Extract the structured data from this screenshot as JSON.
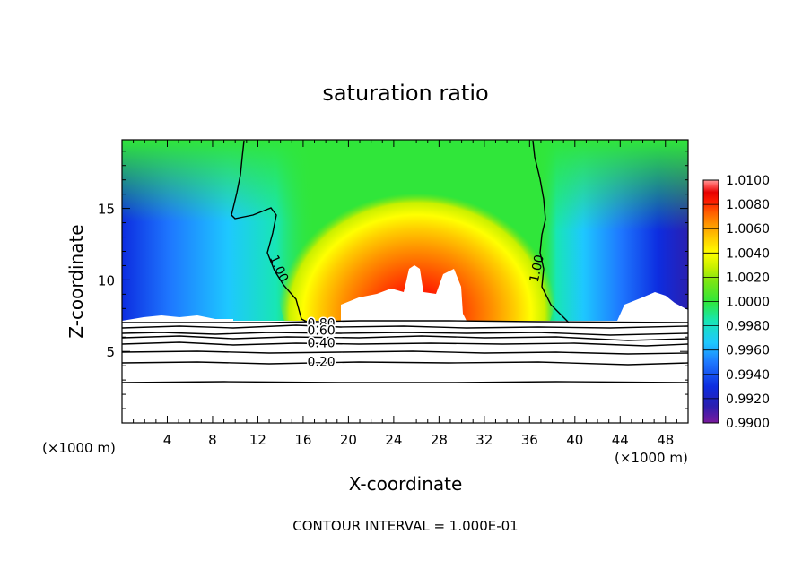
{
  "chart_data": {
    "type": "heatmap",
    "title": "saturation ratio",
    "xlabel": "X-coordinate",
    "ylabel": "Z-coordinate",
    "x_unit_left": "(×1000 m)",
    "x_unit_right": "(×1000 m)",
    "xlim": [
      0,
      50
    ],
    "ylim": [
      0,
      19.8
    ],
    "x_ticks": [
      "4",
      "8",
      "12",
      "16",
      "20",
      "24",
      "28",
      "32",
      "36",
      "40",
      "44",
      "48"
    ],
    "x_tick_values": [
      4,
      8,
      12,
      16,
      20,
      24,
      28,
      32,
      36,
      40,
      44,
      48
    ],
    "y_ticks": [
      "5",
      "10",
      "15"
    ],
    "y_tick_values": [
      5,
      10,
      15
    ],
    "footer": "CONTOUR INTERVAL = 1.000E-01",
    "colorbar": {
      "labels": [
        "1.0100",
        "1.0080",
        "1.0060",
        "1.0040",
        "1.0020",
        "1.0000",
        "0.9980",
        "0.9960",
        "0.9940",
        "0.9920",
        "0.9900"
      ],
      "min": 0.99,
      "max": 1.01,
      "colors": [
        "#7a1a9e",
        "#2a1fb0",
        "#0d2de0",
        "#1e78ff",
        "#1ec8ff",
        "#18e6b4",
        "#30e63a",
        "#78e614",
        "#c8f000",
        "#ffff00",
        "#ffcc00",
        "#ff9400",
        "#ff5a00",
        "#ff1e00",
        "#e60000",
        "#ff5a5a",
        "#ff9a9a"
      ]
    },
    "contour_labels": [
      {
        "text": "1.00",
        "x": 13.9,
        "z": 10.8
      },
      {
        "text": "1.00",
        "x": 36.6,
        "z": 10.8
      },
      {
        "text": "0.80",
        "x": 17.6,
        "z": 7.0
      },
      {
        "text": "0.60",
        "x": 17.6,
        "z": 6.5
      },
      {
        "text": "0.40",
        "x": 17.6,
        "z": 5.6
      },
      {
        "text": "0.20",
        "x": 17.6,
        "z": 4.3
      }
    ]
  }
}
